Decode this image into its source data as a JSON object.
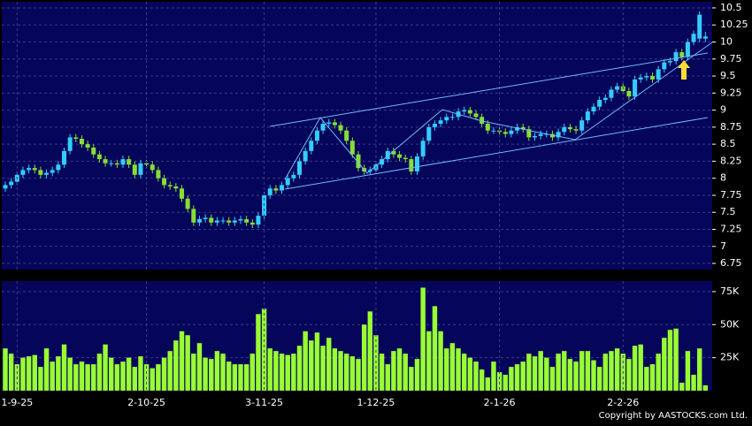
{
  "chart_data": [
    {
      "type": "candlestick",
      "open": [
        7.85,
        7.9,
        7.95,
        8.05,
        8.12,
        8.15,
        8.12,
        8.05,
        8.08,
        8.12,
        8.2,
        8.4,
        8.6,
        8.58,
        8.5,
        8.45,
        8.35,
        8.28,
        8.22,
        8.22,
        8.2,
        8.28,
        8.2,
        8.05,
        8.22,
        8.2,
        8.12,
        8.0,
        7.9,
        7.88,
        7.85,
        7.7,
        7.55,
        7.35,
        7.4,
        7.42,
        7.35,
        7.38,
        7.38,
        7.35,
        7.38,
        7.4,
        7.35,
        7.32,
        7.45,
        7.75,
        7.85,
        7.82,
        7.9,
        8.0,
        8.05,
        8.25,
        8.4,
        8.55,
        8.7,
        8.8,
        8.82,
        8.78,
        8.7,
        8.55,
        8.35,
        8.15,
        8.1,
        8.12,
        8.2,
        8.28,
        8.4,
        8.35,
        8.3,
        8.28,
        8.1,
        8.32,
        8.55,
        8.75,
        8.8,
        8.85,
        8.9,
        8.9,
        8.98,
        9.0,
        8.95,
        8.9,
        8.8,
        8.7,
        8.7,
        8.68,
        8.65,
        8.7,
        8.75,
        8.72,
        8.6,
        8.62,
        8.65,
        8.65,
        8.6,
        8.68,
        8.75,
        8.72,
        8.7,
        8.85,
        8.98,
        9.05,
        9.15,
        9.18,
        9.3,
        9.35,
        9.28,
        9.2,
        9.45,
        9.48,
        9.5,
        9.45,
        9.6,
        9.7,
        9.72,
        9.85,
        9.78,
        10.0,
        10.05,
        10.05
      ],
      "high": [
        7.95,
        8.0,
        8.1,
        8.17,
        8.2,
        8.2,
        8.17,
        8.13,
        8.17,
        8.25,
        8.45,
        8.65,
        8.65,
        8.63,
        8.55,
        8.5,
        8.4,
        8.33,
        8.27,
        8.27,
        8.33,
        8.33,
        8.25,
        8.27,
        8.27,
        8.25,
        8.17,
        8.05,
        7.95,
        7.93,
        7.9,
        7.75,
        7.6,
        7.45,
        7.47,
        7.47,
        7.43,
        7.43,
        7.43,
        7.43,
        7.45,
        7.45,
        7.4,
        7.5,
        7.8,
        7.9,
        7.9,
        7.95,
        8.05,
        8.1,
        8.3,
        8.45,
        8.6,
        8.75,
        8.85,
        8.87,
        8.87,
        8.83,
        8.75,
        8.6,
        8.4,
        8.2,
        8.17,
        8.25,
        8.33,
        8.45,
        8.45,
        8.4,
        8.35,
        8.33,
        8.37,
        8.6,
        8.8,
        8.85,
        8.9,
        8.95,
        8.95,
        9.03,
        9.05,
        9.05,
        9.0,
        8.95,
        8.85,
        8.75,
        8.75,
        8.73,
        8.75,
        8.8,
        8.8,
        8.77,
        8.67,
        8.7,
        8.7,
        8.7,
        8.73,
        8.8,
        8.8,
        8.77,
        8.9,
        9.03,
        9.1,
        9.2,
        9.23,
        9.35,
        9.4,
        9.4,
        9.33,
        9.5,
        9.53,
        9.55,
        9.55,
        9.65,
        9.75,
        9.77,
        9.9,
        9.9,
        10.05,
        10.17,
        10.45,
        10.15
      ],
      "low": [
        7.8,
        7.85,
        7.9,
        8.0,
        8.07,
        8.07,
        8.0,
        8.0,
        8.03,
        8.07,
        8.15,
        8.35,
        8.53,
        8.45,
        8.4,
        8.3,
        8.23,
        8.17,
        8.17,
        8.15,
        8.15,
        8.15,
        8.0,
        8.0,
        8.15,
        8.07,
        7.95,
        7.85,
        7.83,
        7.8,
        7.65,
        7.5,
        7.3,
        7.3,
        7.35,
        7.3,
        7.3,
        7.33,
        7.3,
        7.3,
        7.33,
        7.3,
        7.27,
        7.27,
        7.4,
        7.7,
        7.77,
        7.77,
        7.85,
        7.95,
        8.0,
        8.2,
        8.35,
        8.5,
        8.65,
        8.75,
        8.73,
        8.65,
        8.5,
        8.3,
        8.1,
        8.05,
        8.05,
        8.07,
        8.15,
        8.23,
        8.3,
        8.25,
        8.23,
        8.05,
        8.05,
        8.27,
        8.5,
        8.7,
        8.75,
        8.8,
        8.85,
        8.85,
        8.93,
        8.9,
        8.85,
        8.75,
        8.65,
        8.65,
        8.63,
        8.6,
        8.6,
        8.65,
        8.67,
        8.55,
        8.55,
        8.57,
        8.6,
        8.55,
        8.55,
        8.63,
        8.67,
        8.65,
        8.65,
        8.8,
        8.93,
        9.0,
        9.1,
        9.13,
        9.25,
        9.23,
        9.15,
        9.15,
        9.4,
        9.43,
        9.4,
        9.4,
        9.55,
        9.65,
        9.67,
        9.73,
        9.73,
        9.95,
        10.0,
        10.0
      ],
      "close": [
        7.9,
        7.95,
        8.05,
        8.12,
        8.15,
        8.12,
        8.05,
        8.08,
        8.12,
        8.2,
        8.4,
        8.6,
        8.58,
        8.5,
        8.45,
        8.35,
        8.28,
        8.22,
        8.22,
        8.2,
        8.28,
        8.2,
        8.05,
        8.22,
        8.2,
        8.12,
        8.0,
        7.9,
        7.88,
        7.85,
        7.7,
        7.55,
        7.35,
        7.4,
        7.42,
        7.35,
        7.38,
        7.38,
        7.35,
        7.38,
        7.4,
        7.35,
        7.32,
        7.45,
        7.75,
        7.85,
        7.82,
        7.9,
        8.0,
        8.05,
        8.25,
        8.4,
        8.55,
        8.7,
        8.8,
        8.82,
        8.78,
        8.7,
        8.55,
        8.35,
        8.15,
        8.1,
        8.12,
        8.2,
        8.28,
        8.4,
        8.35,
        8.3,
        8.28,
        8.1,
        8.32,
        8.55,
        8.75,
        8.8,
        8.85,
        8.9,
        8.9,
        8.98,
        9.0,
        8.95,
        8.9,
        8.8,
        8.7,
        8.7,
        8.68,
        8.65,
        8.7,
        8.75,
        8.72,
        8.6,
        8.62,
        8.65,
        8.65,
        8.6,
        8.68,
        8.75,
        8.72,
        8.7,
        8.85,
        8.98,
        9.05,
        9.15,
        9.18,
        9.3,
        9.35,
        9.28,
        9.2,
        9.45,
        9.48,
        9.5,
        9.45,
        9.6,
        9.7,
        9.72,
        9.85,
        9.78,
        10.0,
        10.12,
        10.4,
        10.08
      ],
      "up_color": "#33ccff",
      "down_color": "#88dd33",
      "ylim": [
        6.66,
        10.59
      ],
      "yticks": [
        6.75,
        7,
        7.25,
        7.5,
        7.75,
        8,
        8.25,
        8.5,
        8.75,
        9,
        9.25,
        9.5,
        9.75,
        10,
        10.25,
        10.5
      ],
      "grid": true
    },
    {
      "type": "bar",
      "categories": [
        null,
        null,
        "1-9-25",
        null,
        null,
        null,
        null,
        null,
        null,
        null,
        null,
        null,
        null,
        null,
        null,
        null,
        null,
        null,
        null,
        null,
        null,
        null,
        null,
        null,
        "2-10-25",
        null,
        null,
        null,
        null,
        null,
        null,
        null,
        null,
        null,
        null,
        null,
        null,
        null,
        null,
        null,
        null,
        null,
        null,
        null,
        "3-11-25",
        null,
        null,
        null,
        null,
        null,
        null,
        null,
        null,
        null,
        null,
        null,
        null,
        null,
        null,
        null,
        null,
        null,
        null,
        "1-12-25",
        null,
        null,
        null,
        null,
        null,
        null,
        null,
        null,
        null,
        null,
        null,
        null,
        null,
        null,
        null,
        null,
        null,
        null,
        null,
        null,
        "2-1-26",
        null,
        null,
        null,
        null,
        null,
        null,
        null,
        null,
        null,
        null,
        null,
        null,
        null,
        null,
        null,
        null,
        null,
        null,
        null,
        null,
        "2-2-26",
        null,
        null,
        null,
        null,
        null,
        null,
        null,
        null,
        null,
        null,
        null,
        null,
        null,
        null
      ],
      "values": [
        32000,
        28000,
        20000,
        25000,
        26000,
        27000,
        18000,
        32000,
        22000,
        26000,
        35000,
        25000,
        20000,
        22000,
        20000,
        20000,
        28000,
        35000,
        25000,
        20000,
        22000,
        25000,
        18000,
        26000,
        20000,
        17000,
        20000,
        25000,
        30000,
        38000,
        45000,
        42000,
        28000,
        36000,
        25000,
        24000,
        30000,
        28000,
        22000,
        20000,
        20000,
        20000,
        28000,
        58000,
        62000,
        32000,
        30000,
        28000,
        27000,
        28000,
        34000,
        45000,
        38000,
        44000,
        34000,
        40000,
        32000,
        30000,
        28000,
        26000,
        24000,
        50000,
        60000,
        42000,
        28000,
        20000,
        30000,
        32000,
        28000,
        18000,
        24000,
        78000,
        45000,
        64000,
        45000,
        32000,
        36000,
        32000,
        28000,
        25000,
        22000,
        16000,
        10000,
        22000,
        14000,
        12000,
        18000,
        20000,
        22000,
        28000,
        26000,
        30000,
        25000,
        18000,
        28000,
        30000,
        24000,
        22000,
        30000,
        30000,
        23000,
        18000,
        28000,
        30000,
        32000,
        28000,
        24000,
        34000,
        35000,
        18000,
        20000,
        28000,
        40000,
        46000,
        47000,
        6000,
        30000,
        12000,
        32000,
        4000
      ],
      "color": "#99ff33",
      "ylim": [
        0,
        83000
      ],
      "yticks": [
        {
          "value": 25000,
          "label": "25K"
        },
        {
          "value": 50000,
          "label": "50K"
        },
        {
          "value": 75000,
          "label": "75K"
        }
      ],
      "grid": true
    }
  ],
  "copyright": "Copyright by AASTOCKS.com Ltd."
}
